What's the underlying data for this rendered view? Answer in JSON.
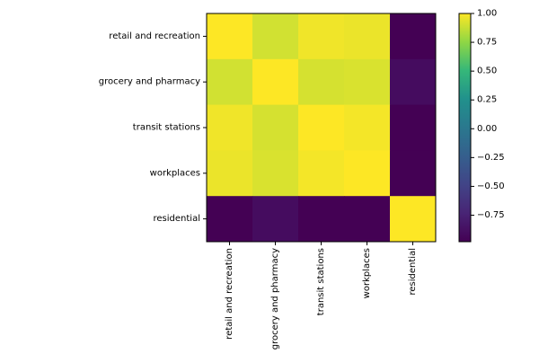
{
  "chart_data": {
    "type": "heatmap",
    "title": "",
    "xlabel": "",
    "ylabel": "",
    "x_categories": [
      "retail and recreation",
      "grocery and pharmacy",
      "transit stations",
      "workplaces",
      "residential"
    ],
    "y_categories": [
      "retail and recreation",
      "grocery and pharmacy",
      "transit stations",
      "workplaces",
      "residential"
    ],
    "values": [
      [
        1.0,
        0.9,
        0.97,
        0.96,
        -0.98
      ],
      [
        0.9,
        1.0,
        0.91,
        0.92,
        -0.9
      ],
      [
        0.97,
        0.91,
        1.0,
        0.98,
        -0.98
      ],
      [
        0.96,
        0.92,
        0.98,
        1.0,
        -0.98
      ],
      [
        -0.98,
        -0.9,
        -0.98,
        -0.98,
        1.0
      ]
    ],
    "colormap": "viridis",
    "vmin": -0.98,
    "vmax": 1.0,
    "colorbar": {
      "ticks": [
        1.0,
        0.75,
        0.5,
        0.25,
        0.0,
        -0.25,
        -0.5,
        -0.75
      ],
      "tick_labels": [
        "1.00",
        "0.75",
        "0.50",
        "0.25",
        "0.00",
        "−0.25",
        "−0.50",
        "−0.75"
      ]
    },
    "grid": false,
    "x_tick_rotation": "vertical"
  }
}
